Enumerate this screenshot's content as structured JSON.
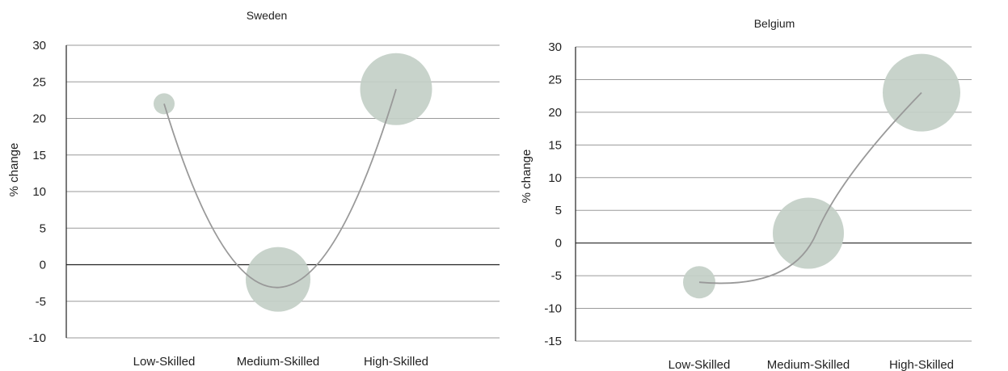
{
  "chart_data": [
    {
      "type": "bubble",
      "title": "Sweden",
      "ylabel": "% change",
      "xlabel": "",
      "ylim": [
        -10,
        30
      ],
      "yticks": [
        -10,
        -5,
        0,
        5,
        10,
        15,
        20,
        25,
        30
      ],
      "categories": [
        "Low-Skilled",
        "Medium-Skilled",
        "High-Skilled"
      ],
      "values": [
        22,
        -2,
        24
      ],
      "bubble_size": [
        1,
        4,
        4.5
      ],
      "grid": true,
      "colors": {
        "bubble": "#c3cfc7",
        "curve": "#999999"
      }
    },
    {
      "type": "bubble",
      "title": "Belgium",
      "ylabel": "% change",
      "xlabel": "",
      "ylim": [
        -15,
        30
      ],
      "yticks": [
        -15,
        -10,
        -5,
        0,
        5,
        10,
        15,
        20,
        25,
        30
      ],
      "categories": [
        "Low-Skilled",
        "Medium-Skilled",
        "High-Skilled"
      ],
      "values": [
        -6,
        1.5,
        23
      ],
      "bubble_size": [
        2,
        5,
        5.5
      ],
      "grid": true,
      "colors": {
        "bubble": "#c3cfc7",
        "curve": "#999999"
      }
    }
  ]
}
